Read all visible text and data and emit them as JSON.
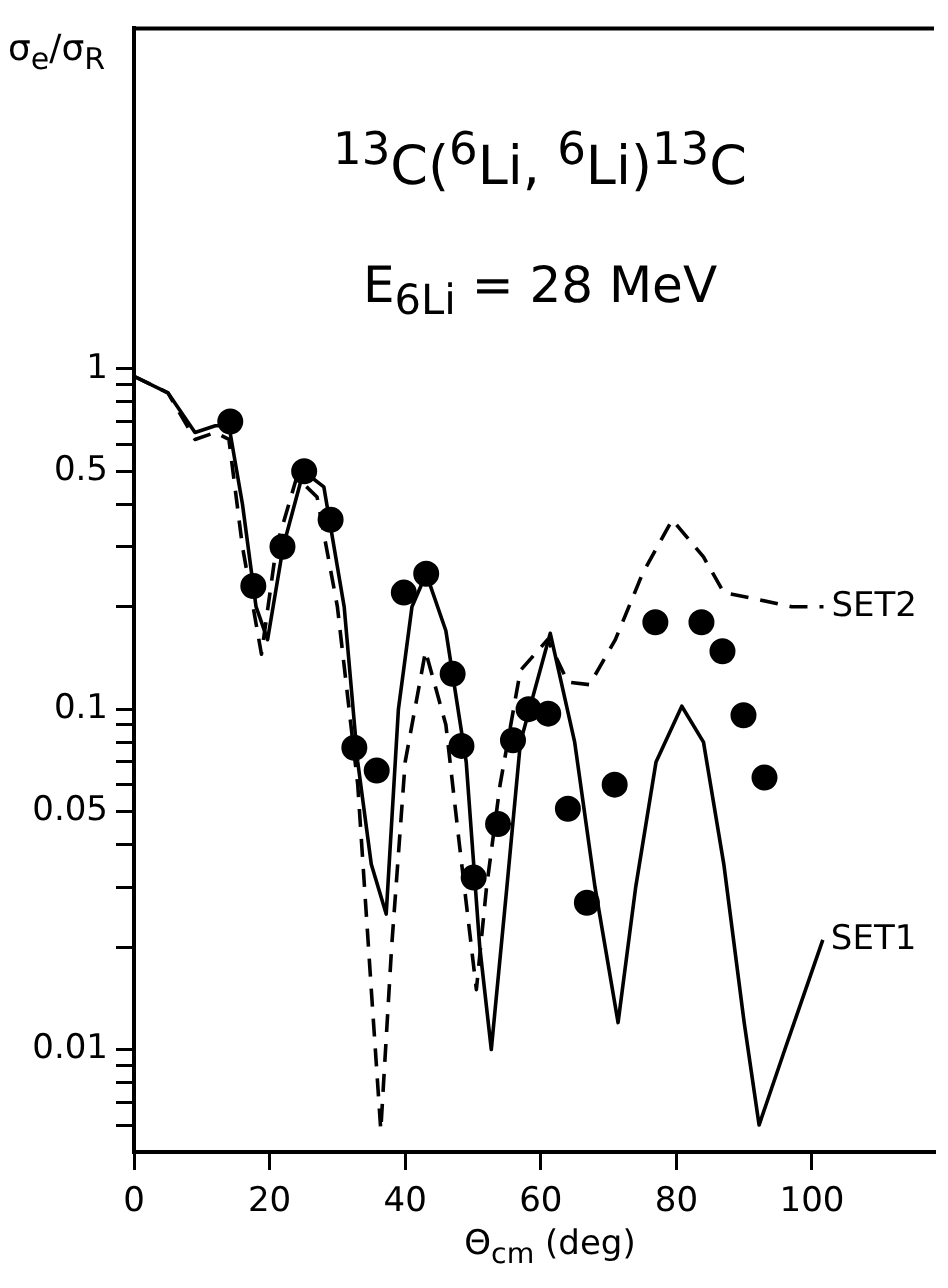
{
  "chart_data": {
    "type": "line",
    "title": "$^{13}$C($^{6}$Li, $^{6}$Li)$^{13}$C",
    "subtitle": "E$_{6Li}$ = 28 MeV",
    "xlabel": "Θ$_{cm}$ (deg)",
    "ylabel": "σ$_{e}$/σ$_{R}$",
    "log": "y",
    "xlim": [
      0,
      118
    ],
    "xticks": [
      0,
      20,
      40,
      60,
      80,
      100
    ],
    "ylim": [
      0.005,
      10
    ],
    "yticks": [
      1,
      {
        "value": 0.9,
        "label": null
      },
      {
        "value": 0.8,
        "label": null
      },
      {
        "value": 0.7,
        "label": null
      },
      {
        "value": 0.6,
        "label": null
      },
      0.5,
      {
        "value": 0.4,
        "label": null
      },
      {
        "value": 0.3,
        "label": null
      },
      {
        "value": 0.2,
        "label": null
      },
      0.1,
      {
        "value": 0.09,
        "label": null
      },
      {
        "value": 0.08,
        "label": null
      },
      {
        "value": 0.07,
        "label": null
      },
      {
        "value": 0.06,
        "label": null
      },
      0.05,
      {
        "value": 0.04,
        "label": null
      },
      {
        "value": 0.03,
        "label": null
      },
      {
        "value": 0.02,
        "label": null
      },
      0.01,
      {
        "value": 0.009,
        "label": null
      },
      {
        "value": 0.008,
        "label": null
      },
      {
        "value": 0.007,
        "label": null
      },
      {
        "value": 0.006,
        "label": null
      }
    ],
    "series": [
      {
        "type": "scatter",
        "marker": "circle",
        "color": "#000000",
        "x": [
          14.2,
          17.6,
          21.9,
          25.1,
          29.0,
          32.5,
          35.8,
          39.8,
          43.1,
          47.0,
          48.3,
          50.1,
          53.7,
          55.9,
          58.2,
          61.1,
          64.0,
          66.8,
          70.9,
          76.9,
          83.7,
          86.8,
          89.9,
          93.0
        ],
        "values": [
          0.7,
          0.23,
          0.3,
          0.5,
          0.36,
          0.077,
          0.066,
          0.22,
          0.25,
          0.127,
          0.078,
          0.032,
          0.046,
          0.081,
          0.1,
          0.097,
          0.051,
          0.027,
          0.06,
          0.18,
          0.18,
          0.148,
          0.096,
          0.063
        ]
      },
      {
        "name": "SET1",
        "line_style": "solid",
        "color": "#000000",
        "x": [
          0,
          5,
          9,
          12,
          14,
          16,
          18,
          19.7,
          22,
          25,
          28,
          31,
          33,
          35,
          37.2,
          39,
          41,
          43.1,
          46,
          49,
          51,
          52.7,
          55,
          57,
          61.4,
          65,
          68,
          71.4,
          74,
          77,
          80.8,
          84,
          87,
          90,
          92.2,
          96,
          101.6
        ],
        "values": [
          0.95,
          0.85,
          0.65,
          0.68,
          0.68,
          0.4,
          0.2,
          0.16,
          0.3,
          0.5,
          0.45,
          0.2,
          0.07,
          0.035,
          0.025,
          0.1,
          0.2,
          0.25,
          0.17,
          0.07,
          0.02,
          0.01,
          0.03,
          0.08,
          0.167,
          0.08,
          0.03,
          0.012,
          0.03,
          0.07,
          0.102,
          0.08,
          0.035,
          0.012,
          0.006,
          0.01,
          0.021
        ]
      },
      {
        "name": "SET2",
        "line_style": "dashed",
        "color": "#000000",
        "x": [
          0,
          5,
          9,
          12,
          14,
          16,
          18.8,
          21,
          24,
          27,
          30,
          33,
          35,
          36.4,
          38,
          40,
          43,
          46,
          48,
          50.5,
          52,
          54,
          57,
          61,
          64,
          67.2,
          71,
          75,
          79.4,
          84,
          87,
          92,
          97,
          101.7
        ],
        "values": [
          0.95,
          0.85,
          0.62,
          0.65,
          0.62,
          0.3,
          0.145,
          0.3,
          0.48,
          0.42,
          0.2,
          0.06,
          0.015,
          0.0058,
          0.02,
          0.07,
          0.148,
          0.09,
          0.04,
          0.015,
          0.03,
          0.06,
          0.13,
          0.16,
          0.12,
          0.118,
          0.16,
          0.25,
          0.36,
          0.28,
          0.22,
          0.21,
          0.2,
          0.2
        ]
      }
    ]
  }
}
